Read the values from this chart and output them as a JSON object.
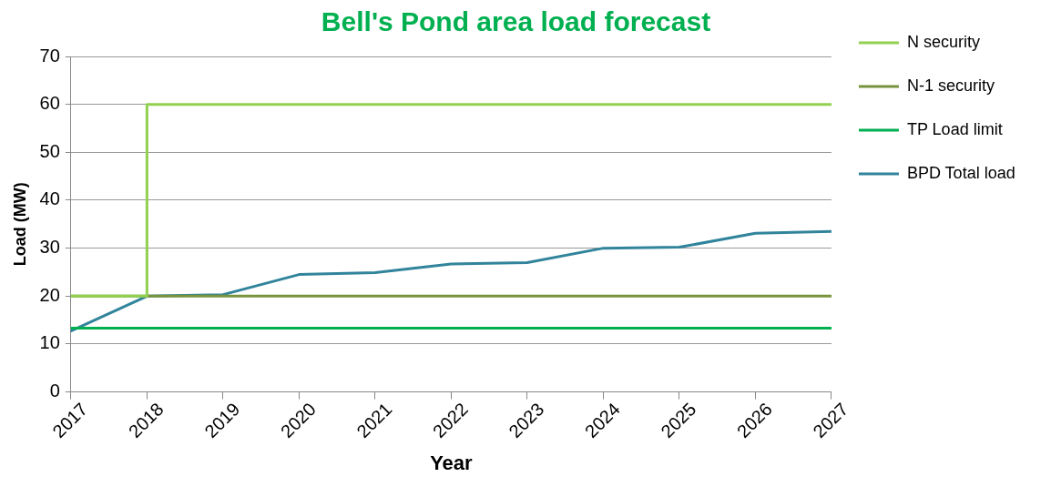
{
  "chart_data": {
    "type": "line",
    "title": "Bell's Pond area load forecast",
    "xlabel": "Year",
    "ylabel": "Load (MW)",
    "xlim": [
      2017,
      2027
    ],
    "xticks": [
      2017,
      2018,
      2019,
      2020,
      2021,
      2022,
      2023,
      2024,
      2025,
      2026,
      2027
    ],
    "ylim": [
      0,
      70
    ],
    "yticks": [
      0,
      10,
      20,
      30,
      40,
      50,
      60,
      70
    ],
    "grid": "y",
    "legend": "right",
    "marker": "none",
    "line_style": "solid",
    "series": [
      {
        "name": "N security",
        "color": "#92d050",
        "x": [
          2017,
          2018,
          2018,
          2027
        ],
        "values": [
          20,
          20,
          60,
          60
        ]
      },
      {
        "name": "N-1 security",
        "color": "#77933c",
        "x": [
          2017,
          2027
        ],
        "values": [
          20,
          20
        ]
      },
      {
        "name": "TP Load limit",
        "color": "#00b050",
        "x": [
          2017,
          2027
        ],
        "values": [
          13.3,
          13.3
        ]
      },
      {
        "name": "BPD Total load",
        "color": "#31849b",
        "x": [
          2017,
          2018,
          2019,
          2020,
          2021,
          2022,
          2023,
          2024,
          2025,
          2026,
          2027
        ],
        "values": [
          12.7,
          20,
          20.3,
          24.5,
          24.9,
          26.7,
          27,
          30,
          30.2,
          33.1,
          33.5
        ]
      }
    ]
  }
}
